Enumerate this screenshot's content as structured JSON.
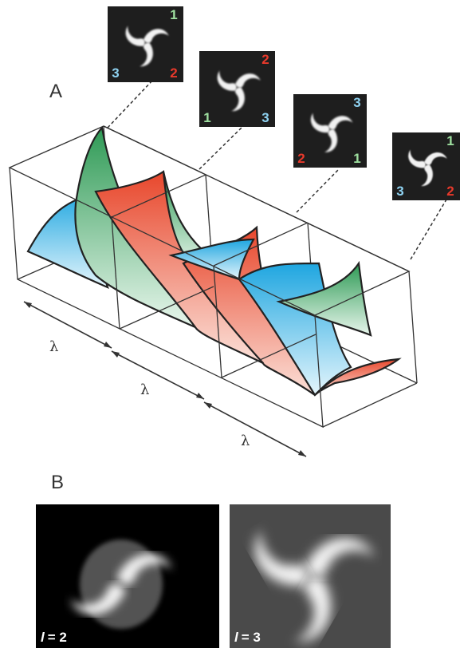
{
  "panel_a": {
    "label": "A",
    "wavelength_labels": [
      "λ",
      "λ",
      "λ"
    ],
    "insets": [
      {
        "labels": [
          {
            "text": "1",
            "color": "#9fe0a0"
          },
          {
            "text": "3",
            "color": "#8fd3f2"
          },
          {
            "text": "2",
            "color": "#e8392b"
          }
        ]
      },
      {
        "labels": [
          {
            "text": "2",
            "color": "#e8392b"
          },
          {
            "text": "1",
            "color": "#9fe0a0"
          },
          {
            "text": "3",
            "color": "#8fd3f2"
          }
        ]
      },
      {
        "labels": [
          {
            "text": "3",
            "color": "#8fd3f2"
          },
          {
            "text": "2",
            "color": "#e8392b"
          },
          {
            "text": "1",
            "color": "#9fe0a0"
          }
        ]
      },
      {
        "labels": [
          {
            "text": "1",
            "color": "#9fe0a0"
          },
          {
            "text": "3",
            "color": "#8fd3f2"
          },
          {
            "text": "2",
            "color": "#e8392b"
          }
        ]
      }
    ]
  },
  "panel_b": {
    "label": "B",
    "images": [
      {
        "symbol": "l",
        "value": "= 2"
      },
      {
        "symbol": "l",
        "value": "= 3"
      }
    ]
  }
}
